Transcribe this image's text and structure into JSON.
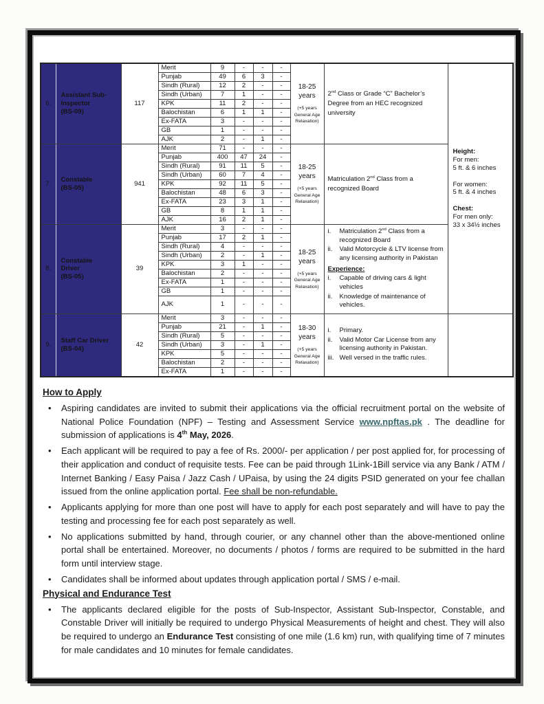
{
  "doc": {
    "colors": {
      "table_header_blue": "#2e2a7d",
      "link_teal": "#3a686c",
      "page_border": "#0d0d0d"
    },
    "table": {
      "posts": [
        {
          "sno": "6.",
          "title_lines": [
            "Assistant Sub-",
            "Inspector",
            "(BS-09)"
          ],
          "total": "117",
          "age": {
            "range": "18-25 years",
            "note": "(+5 years General Age Relaxation)"
          },
          "regions": [
            {
              "name": "Merit",
              "v": [
                "9",
                "-",
                "-",
                "-"
              ]
            },
            {
              "name": "Punjab",
              "v": [
                "49",
                "6",
                "3",
                "-"
              ]
            },
            {
              "name": "Sindh (Rural)",
              "v": [
                "12",
                "2",
                "-",
                "-"
              ]
            },
            {
              "name": "Sindh (Urban)",
              "v": [
                "7",
                "1",
                "-",
                "-"
              ]
            },
            {
              "name": "KPK",
              "v": [
                "11",
                "2",
                "-",
                "-"
              ]
            },
            {
              "name": "Balochistan",
              "v": [
                "6",
                "1",
                "1",
                "-"
              ]
            },
            {
              "name": "Ex-FATA",
              "v": [
                "3",
                "-",
                "-",
                "-"
              ]
            },
            {
              "name": "GB",
              "v": [
                "1",
                "-",
                "-",
                "-"
              ]
            },
            {
              "name": "AJK",
              "v": [
                "2",
                "-",
                "1",
                "-"
              ]
            }
          ],
          "qualification": [
            {
              "kind": "para",
              "segs": [
                {
                  "t": "2"
                },
                {
                  "t": "nd",
                  "s": "sup"
                },
                {
                  "t": " Class or Grade “C” Bachelor’s Degree from an HEC recognized university"
                }
              ]
            }
          ]
        },
        {
          "sno": "7.",
          "title_lines": [
            "Constable",
            "(BS-05)"
          ],
          "total": "941",
          "age": {
            "range": "18-25 years",
            "note": "(+5 years General Age Relaxation)"
          },
          "regions": [
            {
              "name": "Merit",
              "v": [
                "71",
                "-",
                "-",
                "-"
              ]
            },
            {
              "name": "Punjab",
              "v": [
                "400",
                "47",
                "24",
                "-"
              ]
            },
            {
              "name": "Sindh (Rural)",
              "v": [
                "91",
                "11",
                "5",
                "-"
              ]
            },
            {
              "name": "Sindh (Urban)",
              "v": [
                "60",
                "7",
                "4",
                "-"
              ]
            },
            {
              "name": "KPK",
              "v": [
                "92",
                "11",
                "5",
                "-"
              ]
            },
            {
              "name": "Balochistan",
              "v": [
                "48",
                "6",
                "3",
                "-"
              ]
            },
            {
              "name": "Ex-FATA",
              "v": [
                "23",
                "3",
                "1",
                "-"
              ]
            },
            {
              "name": "GB",
              "v": [
                "8",
                "1",
                "1",
                "-"
              ]
            },
            {
              "name": "AJK",
              "v": [
                "16",
                "2",
                "1",
                "-"
              ]
            }
          ],
          "qualification": [
            {
              "kind": "para",
              "segs": [
                {
                  "t": "Matriculation 2"
                },
                {
                  "t": "nd",
                  "s": "sup"
                },
                {
                  "t": " Class from a recognized Board"
                }
              ]
            }
          ]
        },
        {
          "sno": "8.",
          "title_lines": [
            "Constable",
            "Driver",
            "(BS-05)"
          ],
          "total": "39",
          "age": {
            "range": "18-25 years",
            "note": "(+5 years General Age Relaxation)"
          },
          "regions": [
            {
              "name": "Merit",
              "v": [
                "3",
                "-",
                "-",
                "-"
              ]
            },
            {
              "name": "Punjab",
              "v": [
                "17",
                "2",
                "1",
                "-"
              ]
            },
            {
              "name": "Sindh (Rural)",
              "v": [
                "4",
                "-",
                "-",
                "-"
              ]
            },
            {
              "name": "Sindh (Urban)",
              "v": [
                "2",
                "-",
                "1",
                "-"
              ]
            },
            {
              "name": "KPK",
              "v": [
                "3",
                "1",
                "-",
                "-"
              ]
            },
            {
              "name": "Balochistan",
              "v": [
                "2",
                "-",
                "-",
                "-"
              ]
            },
            {
              "name": "Ex-FATA",
              "v": [
                "1",
                "-",
                "-",
                "-"
              ]
            },
            {
              "name": "GB",
              "v": [
                "1",
                "-",
                "-",
                "-"
              ]
            },
            {
              "name": "AJK",
              "v": [
                "1",
                "-",
                "-",
                "-"
              ],
              "tall": true
            }
          ],
          "qualification": [
            {
              "kind": "item",
              "marker": "i.",
              "segs": [
                {
                  "t": "Matriculation 2"
                },
                {
                  "t": "nd",
                  "s": "sup"
                },
                {
                  "t": " Class from a recognized Board"
                }
              ]
            },
            {
              "kind": "item",
              "marker": "ii.",
              "segs": [
                {
                  "t": "Valid Motorcycle & LTV license from any licensing authority in Pakistan"
                }
              ]
            },
            {
              "kind": "heading",
              "segs": [
                {
                  "t": "Experience:",
                  "s": "bu"
                }
              ]
            },
            {
              "kind": "item",
              "marker": "i.",
              "segs": [
                {
                  "t": "Capable of driving cars & light vehicles"
                }
              ]
            },
            {
              "kind": "item",
              "marker": "ii.",
              "segs": [
                {
                  "t": "Knowledge of maintenance of vehicles."
                }
              ]
            }
          ]
        },
        {
          "sno": "9.",
          "title_lines": [
            "Staff Car Driver",
            "(BS-04)"
          ],
          "total": "42",
          "age": {
            "range": "18-30 years",
            "note": "(+5 years General Age Relaxation)"
          },
          "regions": [
            {
              "name": "Merit",
              "v": [
                "3",
                "-",
                "-",
                "-"
              ]
            },
            {
              "name": "Punjab",
              "v": [
                "21",
                "-",
                "1",
                "-"
              ]
            },
            {
              "name": "Sindh (Rural)",
              "v": [
                "5",
                "-",
                "-",
                "-"
              ]
            },
            {
              "name": "Sindh (Urban)",
              "v": [
                "3",
                "-",
                "1",
                "-"
              ]
            },
            {
              "name": "KPK",
              "v": [
                "5",
                "-",
                "-",
                "-"
              ]
            },
            {
              "name": "Balochistan",
              "v": [
                "2",
                "-",
                "-",
                "-"
              ]
            },
            {
              "name": "Ex-FATA",
              "v": [
                "1",
                "-",
                "-",
                "-"
              ]
            }
          ],
          "qualification": [
            {
              "kind": "item",
              "marker": "i.",
              "segs": [
                {
                  "t": "Primary."
                }
              ]
            },
            {
              "kind": "item",
              "marker": "ii.",
              "segs": [
                {
                  "t": "Valid Motor Car License from any licensing authority in Pakistan."
                }
              ]
            },
            {
              "kind": "item",
              "marker": "iii.",
              "segs": [
                {
                  "t": "Well versed in the traffic rules."
                }
              ]
            }
          ]
        }
      ],
      "physical_standards": {
        "merged_over_posts": 3,
        "lines": [
          {
            "t": "Height:",
            "s": "b"
          },
          {
            "t": "For men:"
          },
          {
            "t": "5 ft. & 6 inches"
          },
          {
            "t": ""
          },
          {
            "t": "For women:"
          },
          {
            "t": "5 ft. & 4 inches"
          },
          {
            "t": ""
          },
          {
            "t": "Chest:",
            "s": "b"
          },
          {
            "t": "For men only:"
          },
          {
            "t": "33 x 34½ inches"
          }
        ]
      }
    },
    "sections": [
      {
        "heading": "How to Apply",
        "bullets": [
          [
            {
              "t": "Aspiring candidates are invited to submit their applications via the official recruitment portal on the website of National Police Foundation (NPF) – Testing and Assessment Service "
            },
            {
              "t": "www.npftas.pk",
              "s": "link"
            },
            {
              "t": " . The deadline for submission of applications is "
            },
            {
              "t": "4",
              "s": "b"
            },
            {
              "t": "th",
              "s": "bsup"
            },
            {
              "t": " May, 2026",
              "s": "b"
            },
            {
              "t": "."
            }
          ],
          [
            {
              "t": "Each applicant will be required to pay a fee of Rs. 2000/- per application / per post applied for, for processing of their application and conduct of requisite tests. Fee can be paid through 1Link-1Bill service via any Bank / ATM / Internet Banking / Easy Paisa / Jazz Cash / UPaisa, by using the 24 digits PSID generated on your fee challan issued from the online application portal. "
            },
            {
              "t": "Fee shall be non-refundable.",
              "s": "u"
            }
          ],
          [
            {
              "t": "Applicants applying for more than one post will have to apply for each post separately and will have to pay the testing and processing fee for each post separately as well."
            }
          ],
          [
            {
              "t": "No applications submitted by hand, through courier, or any channel other than the above-mentioned online portal shall be entertained. Moreover, no documents / photos / forms are required to be submitted in the hard form until interview stage."
            }
          ],
          [
            {
              "t": "Candidates shall be informed about updates through application portal / SMS / e-mail."
            }
          ]
        ]
      },
      {
        "heading": "Physical and Endurance Test",
        "bullets": [
          [
            {
              "t": "The applicants declared eligible for the posts of Sub-Inspector, Assistant Sub-Inspector, Constable, and Constable Driver will initially be required to undergo Physical Measurements of height and chest. They will also be required to undergo an "
            },
            {
              "t": "Endurance Test",
              "s": "b"
            },
            {
              "t": " consisting of one mile (1.6 km) run, with qualifying time of 7 minutes for male candidates and 10 minutes for female candidates."
            }
          ]
        ]
      }
    ]
  }
}
